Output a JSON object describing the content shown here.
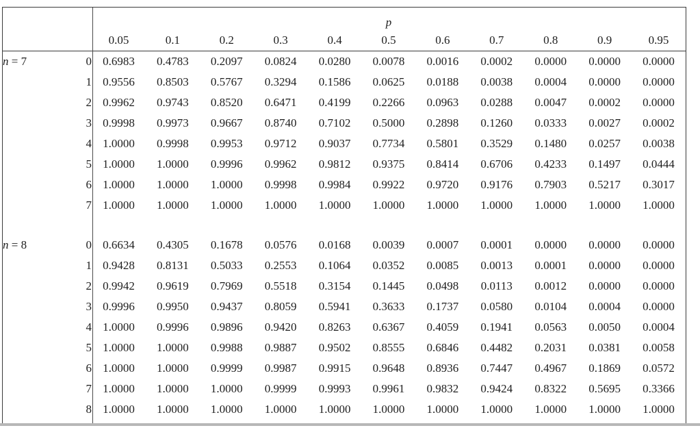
{
  "colors": {
    "background": "#ffffff",
    "text": "#1e1e1e",
    "rule": "#3a3a3a",
    "page_bottom_edge": "#b7b7b7"
  },
  "table": {
    "title": "p",
    "p_values": [
      "0.05",
      "0.1",
      "0.2",
      "0.3",
      "0.4",
      "0.5",
      "0.6",
      "0.7",
      "0.8",
      "0.9",
      "0.95"
    ],
    "blocks": [
      {
        "n_var": "n",
        "n_rest": "= 7",
        "rows": [
          {
            "k": "0",
            "values": [
              "0.6983",
              "0.4783",
              "0.2097",
              "0.0824",
              "0.0280",
              "0.0078",
              "0.0016",
              "0.0002",
              "0.0000",
              "0.0000",
              "0.0000"
            ]
          },
          {
            "k": "1",
            "values": [
              "0.9556",
              "0.8503",
              "0.5767",
              "0.3294",
              "0.1586",
              "0.0625",
              "0.0188",
              "0.0038",
              "0.0004",
              "0.0000",
              "0.0000"
            ]
          },
          {
            "k": "2",
            "values": [
              "0.9962",
              "0.9743",
              "0.8520",
              "0.6471",
              "0.4199",
              "0.2266",
              "0.0963",
              "0.0288",
              "0.0047",
              "0.0002",
              "0.0000"
            ]
          },
          {
            "k": "3",
            "values": [
              "0.9998",
              "0.9973",
              "0.9667",
              "0.8740",
              "0.7102",
              "0.5000",
              "0.2898",
              "0.1260",
              "0.0333",
              "0.0027",
              "0.0002"
            ]
          },
          {
            "k": "4",
            "values": [
              "1.0000",
              "0.9998",
              "0.9953",
              "0.9712",
              "0.9037",
              "0.7734",
              "0.5801",
              "0.3529",
              "0.1480",
              "0.0257",
              "0.0038"
            ]
          },
          {
            "k": "5",
            "values": [
              "1.0000",
              "1.0000",
              "0.9996",
              "0.9962",
              "0.9812",
              "0.9375",
              "0.8414",
              "0.6706",
              "0.4233",
              "0.1497",
              "0.0444"
            ]
          },
          {
            "k": "6",
            "values": [
              "1.0000",
              "1.0000",
              "1.0000",
              "0.9998",
              "0.9984",
              "0.9922",
              "0.9720",
              "0.9176",
              "0.7903",
              "0.5217",
              "0.3017"
            ]
          },
          {
            "k": "7",
            "values": [
              "1.0000",
              "1.0000",
              "1.0000",
              "1.0000",
              "1.0000",
              "1.0000",
              "1.0000",
              "1.0000",
              "1.0000",
              "1.0000",
              "1.0000"
            ]
          }
        ]
      },
      {
        "n_var": "n",
        "n_rest": "= 8",
        "rows": [
          {
            "k": "0",
            "values": [
              "0.6634",
              "0.4305",
              "0.1678",
              "0.0576",
              "0.0168",
              "0.0039",
              "0.0007",
              "0.0001",
              "0.0000",
              "0.0000",
              "0.0000"
            ]
          },
          {
            "k": "1",
            "values": [
              "0.9428",
              "0.8131",
              "0.5033",
              "0.2553",
              "0.1064",
              "0.0352",
              "0.0085",
              "0.0013",
              "0.0001",
              "0.0000",
              "0.0000"
            ]
          },
          {
            "k": "2",
            "values": [
              "0.9942",
              "0.9619",
              "0.7969",
              "0.5518",
              "0.3154",
              "0.1445",
              "0.0498",
              "0.0113",
              "0.0012",
              "0.0000",
              "0.0000"
            ]
          },
          {
            "k": "3",
            "values": [
              "0.9996",
              "0.9950",
              "0.9437",
              "0.8059",
              "0.5941",
              "0.3633",
              "0.1737",
              "0.0580",
              "0.0104",
              "0.0004",
              "0.0000"
            ]
          },
          {
            "k": "4",
            "values": [
              "1.0000",
              "0.9996",
              "0.9896",
              "0.9420",
              "0.8263",
              "0.6367",
              "0.4059",
              "0.1941",
              "0.0563",
              "0.0050",
              "0.0004"
            ]
          },
          {
            "k": "5",
            "values": [
              "1.0000",
              "1.0000",
              "0.9988",
              "0.9887",
              "0.9502",
              "0.8555",
              "0.6846",
              "0.4482",
              "0.2031",
              "0.0381",
              "0.0058"
            ]
          },
          {
            "k": "6",
            "values": [
              "1.0000",
              "1.0000",
              "0.9999",
              "0.9987",
              "0.9915",
              "0.9648",
              "0.8936",
              "0.7447",
              "0.4967",
              "0.1869",
              "0.0572"
            ]
          },
          {
            "k": "7",
            "values": [
              "1.0000",
              "1.0000",
              "1.0000",
              "0.9999",
              "0.9993",
              "0.9961",
              "0.9832",
              "0.9424",
              "0.8322",
              "0.5695",
              "0.3366"
            ]
          },
          {
            "k": "8",
            "values": [
              "1.0000",
              "1.0000",
              "1.0000",
              "1.0000",
              "1.0000",
              "1.0000",
              "1.0000",
              "1.0000",
              "1.0000",
              "1.0000",
              "1.0000"
            ]
          }
        ]
      }
    ]
  }
}
